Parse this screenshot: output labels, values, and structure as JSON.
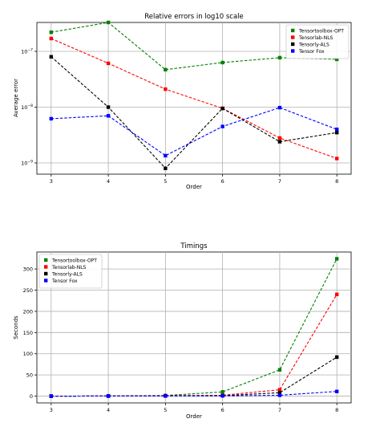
{
  "chart_data": [
    {
      "type": "line",
      "title": "Relative errors in log10 scale",
      "xlabel": "Order",
      "ylabel": "Average error",
      "yscale": "log",
      "x": [
        3,
        4,
        5,
        6,
        7,
        8
      ],
      "xticks": [
        "3",
        "4",
        "5",
        "6",
        "7",
        "8"
      ],
      "yticks": [
        {
          "value": 1e-07,
          "base": "10",
          "exp": "−7"
        },
        {
          "value": 1e-08,
          "base": "10",
          "exp": "−8"
        },
        {
          "value": 1e-09,
          "base": "10",
          "exp": "−9"
        }
      ],
      "grid": true,
      "legend_position": "top-right",
      "series": [
        {
          "name": "Tensortoolbox-OPT",
          "color": "#008000",
          "values": [
            2.2e-07,
            3.3e-07,
            4.7e-08,
            6.3e-08,
            7.7e-08,
            7.2e-08
          ]
        },
        {
          "name": "Tensorlab-NLS",
          "color": "#ff0000",
          "values": [
            1.7e-07,
            6.1e-08,
            2.1e-08,
            9.5e-09,
            2.8e-09,
            1.2e-09
          ]
        },
        {
          "name": "Tensorly-ALS",
          "color": "#000000",
          "values": [
            8e-08,
            1e-08,
            8e-10,
            9.5e-09,
            2.4e-09,
            3.5e-09
          ]
        },
        {
          "name": "Tensor Fox",
          "color": "#0000ff",
          "values": [
            6.2e-09,
            7e-09,
            1.35e-09,
            4.5e-09,
            9.8e-09,
            4e-09
          ]
        }
      ]
    },
    {
      "type": "line",
      "title": "Timings",
      "xlabel": "Order",
      "ylabel": "Seconds",
      "x": [
        3,
        4,
        5,
        6,
        7,
        8
      ],
      "xticks": [
        "3",
        "4",
        "5",
        "6",
        "7",
        "8"
      ],
      "yticks": [
        0,
        50,
        100,
        150,
        200,
        250,
        300
      ],
      "grid": true,
      "legend_position": "top-left",
      "series": [
        {
          "name": "Tensortoolbox-OPT",
          "color": "#008000",
          "values": [
            0,
            0.3,
            1.5,
            10,
            62,
            324
          ]
        },
        {
          "name": "Tensorlab-NLS",
          "color": "#ff0000",
          "values": [
            0,
            0.3,
            1,
            2,
            15,
            240
          ]
        },
        {
          "name": "Tensorly-ALS",
          "color": "#000000",
          "values": [
            0,
            0.2,
            0.5,
            1,
            8,
            92
          ]
        },
        {
          "name": "Tensor Fox",
          "color": "#0000ff",
          "values": [
            0,
            0.2,
            0.3,
            0.5,
            2,
            11
          ]
        }
      ]
    }
  ]
}
